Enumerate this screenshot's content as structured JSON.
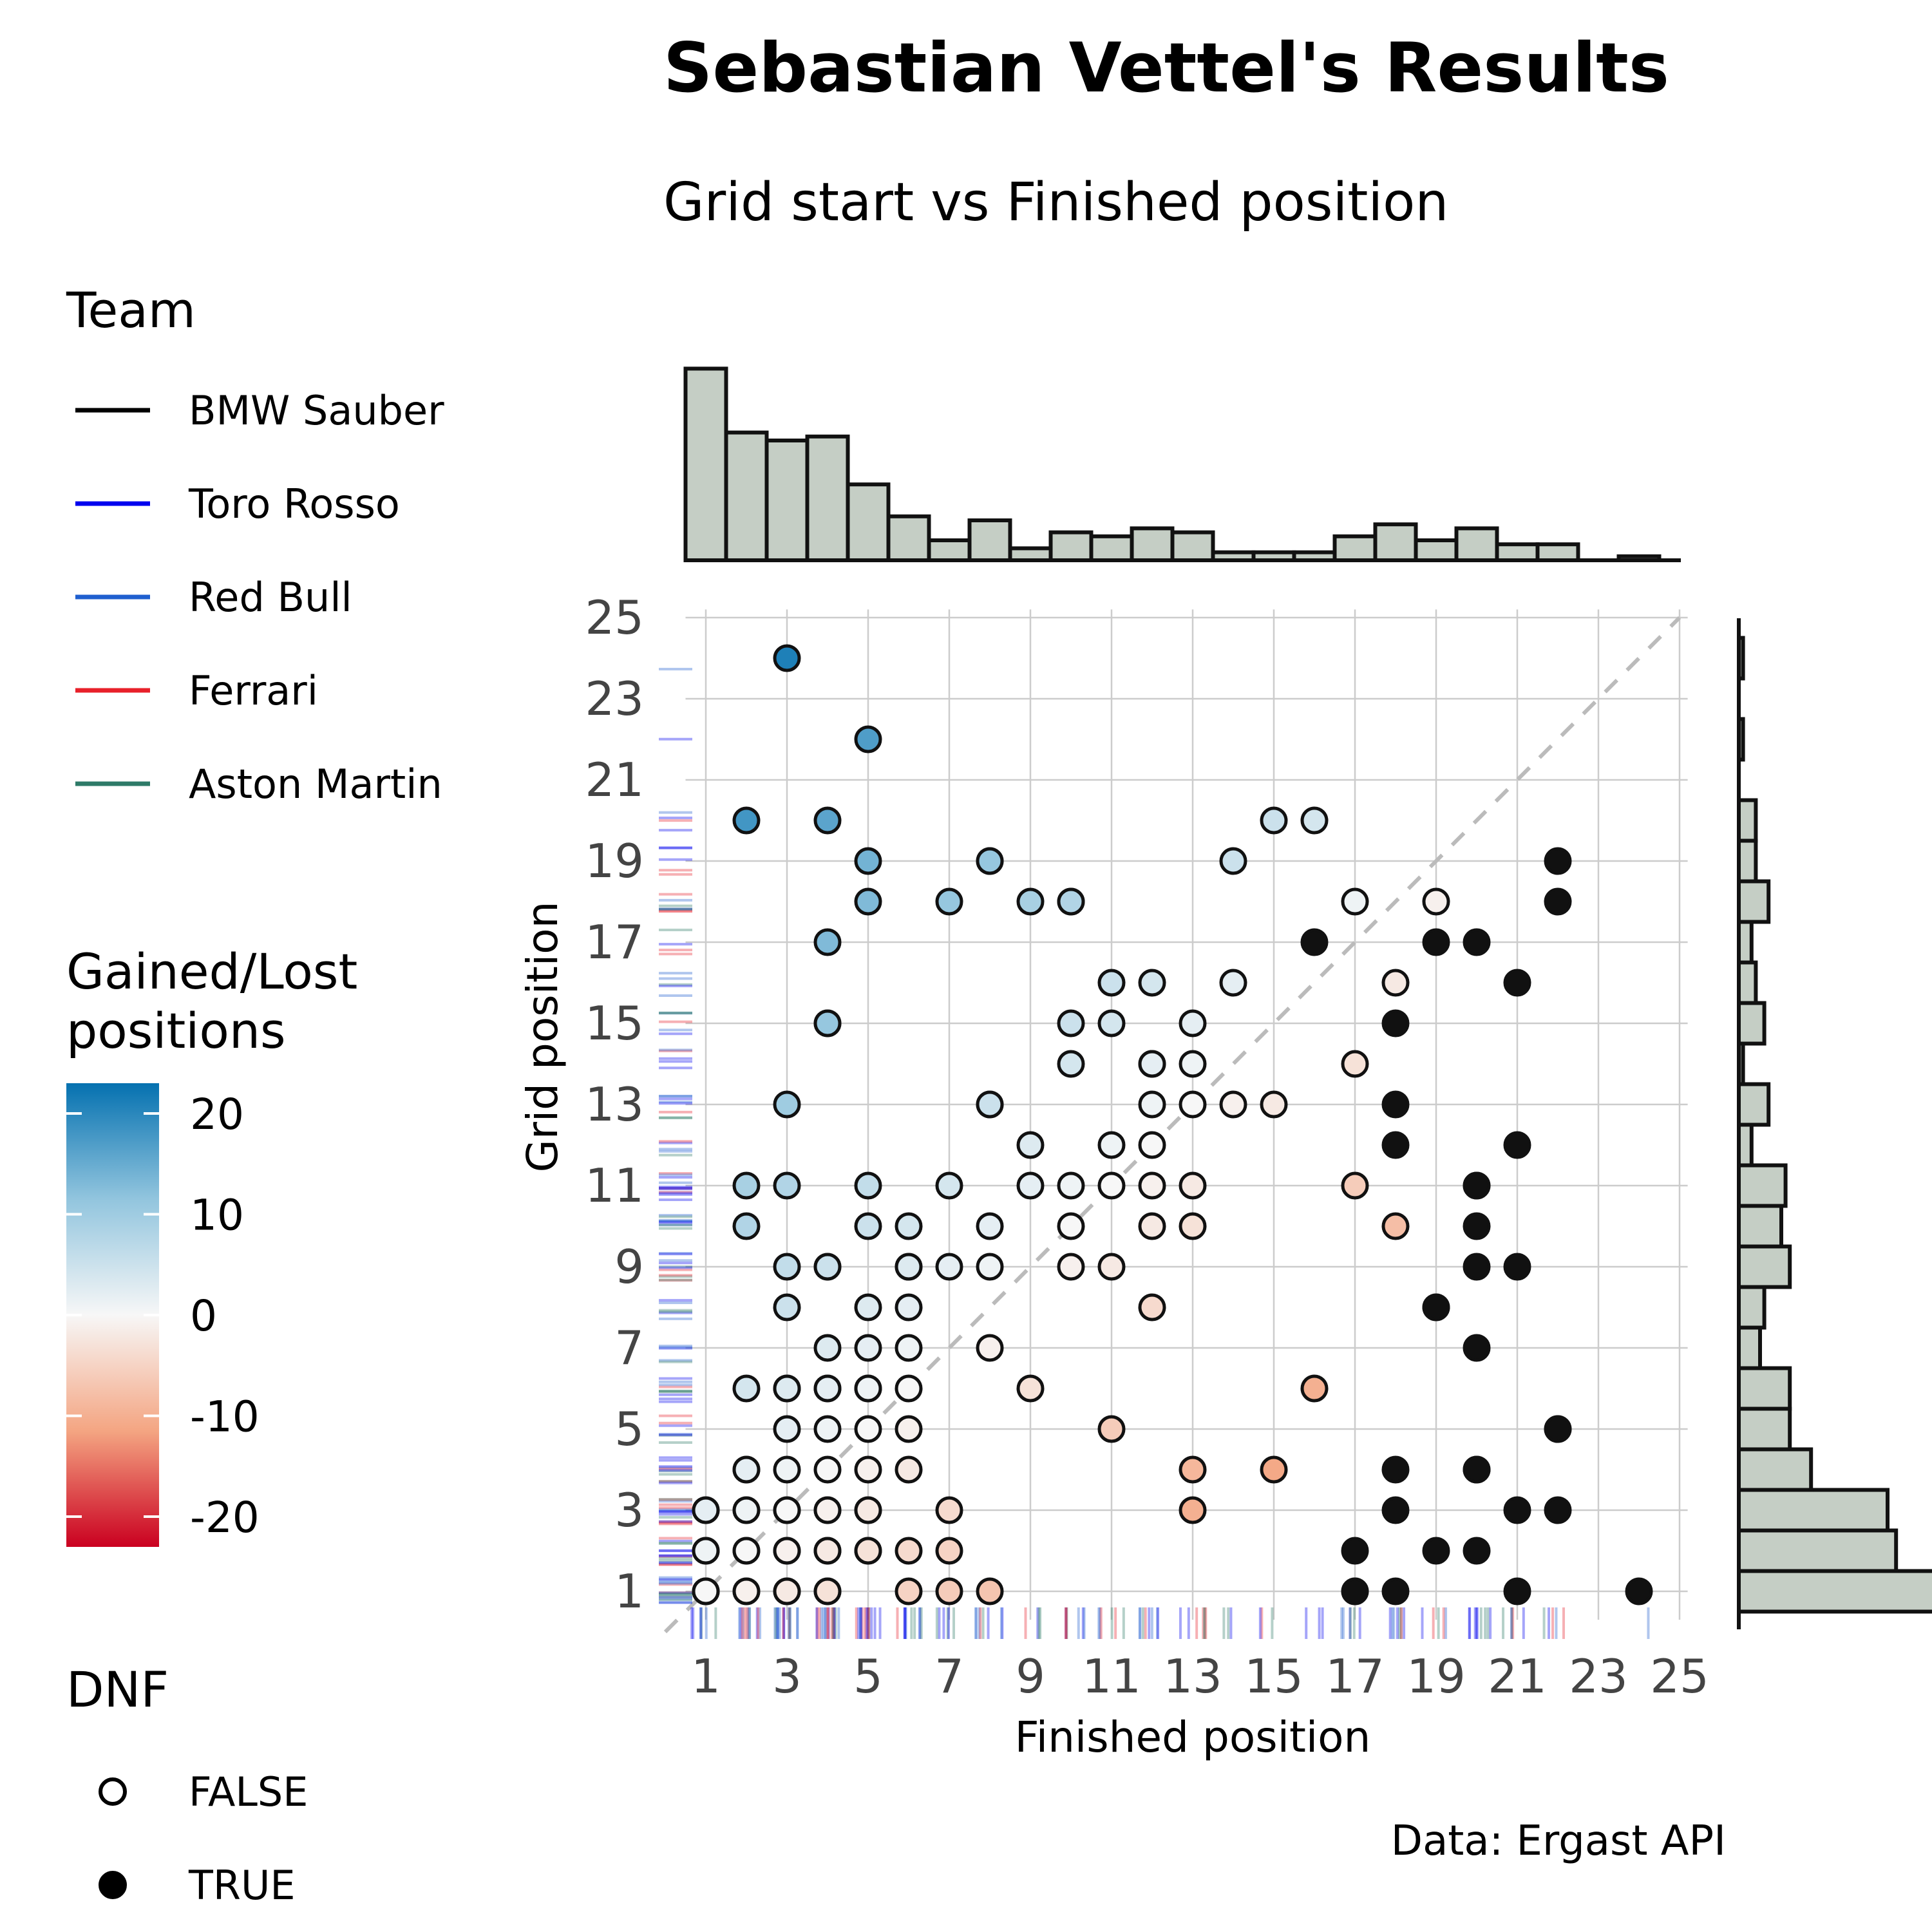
{
  "chart_data": {
    "type": "scatter",
    "title": "Sebastian Vettel's Results",
    "subtitle": "Grid start vs Finished position",
    "xlabel": "Finished position",
    "ylabel": "Grid position",
    "caption": "Data: Ergast API",
    "xlim": [
      0,
      25
    ],
    "ylim": [
      0,
      25
    ],
    "x_ticks": [
      1,
      3,
      5,
      7,
      9,
      11,
      13,
      15,
      17,
      19,
      21,
      23,
      25
    ],
    "y_ticks": [
      1,
      3,
      5,
      7,
      9,
      11,
      13,
      15,
      17,
      19,
      21,
      23,
      25
    ],
    "grid": true,
    "reference_line": "y = x (dashed)",
    "legend_team": {
      "title": "Team",
      "entries": [
        {
          "label": "BMW Sauber",
          "color": "#000000"
        },
        {
          "label": "Toro Rosso",
          "color": "#0000ee"
        },
        {
          "label": "Red Bull",
          "color": "#1f5fcf"
        },
        {
          "label": "Ferrari",
          "color": "#e8202a"
        },
        {
          "label": "Aston Martin",
          "color": "#2e7b68"
        }
      ]
    },
    "legend_gain": {
      "title_line1": "Gained/Lost",
      "title_line2": "positions",
      "ticks": [
        {
          "label": "20",
          "value": 20
        },
        {
          "label": "10",
          "value": 10
        },
        {
          "label": "0",
          "value": 0
        },
        {
          "label": "-10",
          "value": -10
        },
        {
          "label": "-20",
          "value": -20
        }
      ],
      "range": [
        -23,
        23
      ],
      "colors": [
        "#ca0020",
        "#f4a582",
        "#f7f7f7",
        "#92c5de",
        "#0571b0"
      ]
    },
    "legend_dnf": {
      "title": "DNF",
      "entries": [
        {
          "label": "FALSE",
          "filled": false
        },
        {
          "label": "TRUE",
          "filled": true
        }
      ]
    },
    "points": [
      {
        "x": 3,
        "y": 24,
        "dnf": false
      },
      {
        "x": 5,
        "y": 22,
        "dnf": false
      },
      {
        "x": 2,
        "y": 20,
        "dnf": false
      },
      {
        "x": 4,
        "y": 20,
        "dnf": false
      },
      {
        "x": 15,
        "y": 20,
        "dnf": false
      },
      {
        "x": 16,
        "y": 20,
        "dnf": false
      },
      {
        "x": 5,
        "y": 19,
        "dnf": false
      },
      {
        "x": 8,
        "y": 19,
        "dnf": false
      },
      {
        "x": 8,
        "y": 19,
        "dnf": false
      },
      {
        "x": 14,
        "y": 19,
        "dnf": false
      },
      {
        "x": 5,
        "y": 18,
        "dnf": false
      },
      {
        "x": 7,
        "y": 18,
        "dnf": false
      },
      {
        "x": 9,
        "y": 18,
        "dnf": false
      },
      {
        "x": 10,
        "y": 18,
        "dnf": false
      },
      {
        "x": 10,
        "y": 18,
        "dnf": false
      },
      {
        "x": 17,
        "y": 18,
        "dnf": false
      },
      {
        "x": 19,
        "y": 18,
        "dnf": false
      },
      {
        "x": 4,
        "y": 17,
        "dnf": false
      },
      {
        "x": 11,
        "y": 16,
        "dnf": false
      },
      {
        "x": 12,
        "y": 16,
        "dnf": false
      },
      {
        "x": 14,
        "y": 16,
        "dnf": false
      },
      {
        "x": 18,
        "y": 16,
        "dnf": false
      },
      {
        "x": 4,
        "y": 15,
        "dnf": false
      },
      {
        "x": 4,
        "y": 15,
        "dnf": false
      },
      {
        "x": 10,
        "y": 15,
        "dnf": false
      },
      {
        "x": 11,
        "y": 15,
        "dnf": false
      },
      {
        "x": 13,
        "y": 15,
        "dnf": false
      },
      {
        "x": 10,
        "y": 14,
        "dnf": false
      },
      {
        "x": 12,
        "y": 14,
        "dnf": false
      },
      {
        "x": 12,
        "y": 14,
        "dnf": false
      },
      {
        "x": 13,
        "y": 14,
        "dnf": false
      },
      {
        "x": 17,
        "y": 14,
        "dnf": false
      },
      {
        "x": 3,
        "y": 13,
        "dnf": false
      },
      {
        "x": 8,
        "y": 13,
        "dnf": false
      },
      {
        "x": 8,
        "y": 13,
        "dnf": false
      },
      {
        "x": 12,
        "y": 13,
        "dnf": false
      },
      {
        "x": 13,
        "y": 13,
        "dnf": false
      },
      {
        "x": 14,
        "y": 13,
        "dnf": false
      },
      {
        "x": 15,
        "y": 13,
        "dnf": false
      },
      {
        "x": 9,
        "y": 12,
        "dnf": false
      },
      {
        "x": 11,
        "y": 12,
        "dnf": false
      },
      {
        "x": 12,
        "y": 12,
        "dnf": false
      },
      {
        "x": 2,
        "y": 11,
        "dnf": false
      },
      {
        "x": 3,
        "y": 11,
        "dnf": false
      },
      {
        "x": 5,
        "y": 11,
        "dnf": false
      },
      {
        "x": 7,
        "y": 11,
        "dnf": false
      },
      {
        "x": 9,
        "y": 11,
        "dnf": false
      },
      {
        "x": 10,
        "y": 11,
        "dnf": false
      },
      {
        "x": 11,
        "y": 11,
        "dnf": false
      },
      {
        "x": 12,
        "y": 11,
        "dnf": false
      },
      {
        "x": 13,
        "y": 11,
        "dnf": false
      },
      {
        "x": 17,
        "y": 11,
        "dnf": false
      },
      {
        "x": 2,
        "y": 10,
        "dnf": false
      },
      {
        "x": 5,
        "y": 10,
        "dnf": false
      },
      {
        "x": 6,
        "y": 10,
        "dnf": false
      },
      {
        "x": 8,
        "y": 10,
        "dnf": false
      },
      {
        "x": 10,
        "y": 10,
        "dnf": false
      },
      {
        "x": 12,
        "y": 10,
        "dnf": false
      },
      {
        "x": 13,
        "y": 10,
        "dnf": false
      },
      {
        "x": 18,
        "y": 10,
        "dnf": false
      },
      {
        "x": 3,
        "y": 9,
        "dnf": false
      },
      {
        "x": 4,
        "y": 9,
        "dnf": false
      },
      {
        "x": 4,
        "y": 9,
        "dnf": false
      },
      {
        "x": 6,
        "y": 9,
        "dnf": false
      },
      {
        "x": 6,
        "y": 9,
        "dnf": false
      },
      {
        "x": 7,
        "y": 9,
        "dnf": false
      },
      {
        "x": 8,
        "y": 9,
        "dnf": false
      },
      {
        "x": 10,
        "y": 9,
        "dnf": false
      },
      {
        "x": 11,
        "y": 9,
        "dnf": false
      },
      {
        "x": 3,
        "y": 8,
        "dnf": false
      },
      {
        "x": 5,
        "y": 8,
        "dnf": false
      },
      {
        "x": 6,
        "y": 8,
        "dnf": false
      },
      {
        "x": 12,
        "y": 8,
        "dnf": false
      },
      {
        "x": 4,
        "y": 7,
        "dnf": false
      },
      {
        "x": 5,
        "y": 7,
        "dnf": false
      },
      {
        "x": 6,
        "y": 7,
        "dnf": false
      },
      {
        "x": 8,
        "y": 7,
        "dnf": false
      },
      {
        "x": 2,
        "y": 6,
        "dnf": false
      },
      {
        "x": 3,
        "y": 6,
        "dnf": false
      },
      {
        "x": 3,
        "y": 6,
        "dnf": false
      },
      {
        "x": 4,
        "y": 6,
        "dnf": false
      },
      {
        "x": 4,
        "y": 6,
        "dnf": false
      },
      {
        "x": 5,
        "y": 6,
        "dnf": false
      },
      {
        "x": 5,
        "y": 6,
        "dnf": false
      },
      {
        "x": 6,
        "y": 6,
        "dnf": false
      },
      {
        "x": 9,
        "y": 6,
        "dnf": false
      },
      {
        "x": 16,
        "y": 6,
        "dnf": false
      },
      {
        "x": 3,
        "y": 5,
        "dnf": false
      },
      {
        "x": 4,
        "y": 5,
        "dnf": false
      },
      {
        "x": 5,
        "y": 5,
        "dnf": false
      },
      {
        "x": 6,
        "y": 5,
        "dnf": false
      },
      {
        "x": 11,
        "y": 5,
        "dnf": false
      },
      {
        "x": 2,
        "y": 4,
        "dnf": false
      },
      {
        "x": 2,
        "y": 4,
        "dnf": false
      },
      {
        "x": 3,
        "y": 4,
        "dnf": false
      },
      {
        "x": 4,
        "y": 4,
        "dnf": false
      },
      {
        "x": 5,
        "y": 4,
        "dnf": false
      },
      {
        "x": 6,
        "y": 4,
        "dnf": false
      },
      {
        "x": 13,
        "y": 4,
        "dnf": false
      },
      {
        "x": 15,
        "y": 4,
        "dnf": false
      },
      {
        "x": 1,
        "y": 3,
        "dnf": false
      },
      {
        "x": 1,
        "y": 3,
        "dnf": false
      },
      {
        "x": 2,
        "y": 3,
        "dnf": false
      },
      {
        "x": 2,
        "y": 3,
        "dnf": false
      },
      {
        "x": 3,
        "y": 3,
        "dnf": false
      },
      {
        "x": 3,
        "y": 3,
        "dnf": false
      },
      {
        "x": 4,
        "y": 3,
        "dnf": false
      },
      {
        "x": 4,
        "y": 3,
        "dnf": false
      },
      {
        "x": 5,
        "y": 3,
        "dnf": false
      },
      {
        "x": 5,
        "y": 3,
        "dnf": false
      },
      {
        "x": 7,
        "y": 3,
        "dnf": false
      },
      {
        "x": 13,
        "y": 3,
        "dnf": false
      },
      {
        "x": 1,
        "y": 2,
        "dnf": false
      },
      {
        "x": 1,
        "y": 2,
        "dnf": false
      },
      {
        "x": 2,
        "y": 2,
        "dnf": false
      },
      {
        "x": 2,
        "y": 2,
        "dnf": false
      },
      {
        "x": 3,
        "y": 2,
        "dnf": false
      },
      {
        "x": 3,
        "y": 2,
        "dnf": false
      },
      {
        "x": 4,
        "y": 2,
        "dnf": false
      },
      {
        "x": 4,
        "y": 2,
        "dnf": false
      },
      {
        "x": 5,
        "y": 2,
        "dnf": false
      },
      {
        "x": 5,
        "y": 2,
        "dnf": false
      },
      {
        "x": 6,
        "y": 2,
        "dnf": false
      },
      {
        "x": 7,
        "y": 2,
        "dnf": false
      },
      {
        "x": 1,
        "y": 1,
        "dnf": false
      },
      {
        "x": 1,
        "y": 1,
        "dnf": false
      },
      {
        "x": 1,
        "y": 1,
        "dnf": false
      },
      {
        "x": 2,
        "y": 1,
        "dnf": false
      },
      {
        "x": 2,
        "y": 1,
        "dnf": false
      },
      {
        "x": 3,
        "y": 1,
        "dnf": false
      },
      {
        "x": 3,
        "y": 1,
        "dnf": false
      },
      {
        "x": 4,
        "y": 1,
        "dnf": false
      },
      {
        "x": 4,
        "y": 1,
        "dnf": false
      },
      {
        "x": 6,
        "y": 1,
        "dnf": false
      },
      {
        "x": 7,
        "y": 1,
        "dnf": false
      },
      {
        "x": 8,
        "y": 1,
        "dnf": false
      },
      {
        "x": 22,
        "y": 19,
        "dnf": true
      },
      {
        "x": 22,
        "y": 18,
        "dnf": true
      },
      {
        "x": 16,
        "y": 17,
        "dnf": true
      },
      {
        "x": 19,
        "y": 17,
        "dnf": true
      },
      {
        "x": 20,
        "y": 17,
        "dnf": true
      },
      {
        "x": 21,
        "y": 16,
        "dnf": true
      },
      {
        "x": 18,
        "y": 15,
        "dnf": true
      },
      {
        "x": 18,
        "y": 13,
        "dnf": true
      },
      {
        "x": 18,
        "y": 12,
        "dnf": true
      },
      {
        "x": 21,
        "y": 12,
        "dnf": true
      },
      {
        "x": 20,
        "y": 11,
        "dnf": true
      },
      {
        "x": 20,
        "y": 11,
        "dnf": true
      },
      {
        "x": 20,
        "y": 10,
        "dnf": true
      },
      {
        "x": 20,
        "y": 9,
        "dnf": true
      },
      {
        "x": 21,
        "y": 9,
        "dnf": true
      },
      {
        "x": 19,
        "y": 8,
        "dnf": true
      },
      {
        "x": 19,
        "y": 8,
        "dnf": true
      },
      {
        "x": 20,
        "y": 7,
        "dnf": true
      },
      {
        "x": 22,
        "y": 5,
        "dnf": true
      },
      {
        "x": 22,
        "y": 5,
        "dnf": true
      },
      {
        "x": 18,
        "y": 4,
        "dnf": true
      },
      {
        "x": 20,
        "y": 4,
        "dnf": true
      },
      {
        "x": 20,
        "y": 4,
        "dnf": true
      },
      {
        "x": 18,
        "y": 3,
        "dnf": true
      },
      {
        "x": 21,
        "y": 3,
        "dnf": true
      },
      {
        "x": 22,
        "y": 3,
        "dnf": true
      },
      {
        "x": 17,
        "y": 2,
        "dnf": true
      },
      {
        "x": 19,
        "y": 2,
        "dnf": true
      },
      {
        "x": 20,
        "y": 2,
        "dnf": true
      },
      {
        "x": 17,
        "y": 1,
        "dnf": true
      },
      {
        "x": 17,
        "y": 1,
        "dnf": true
      },
      {
        "x": 18,
        "y": 1,
        "dnf": true
      },
      {
        "x": 21,
        "y": 1,
        "dnf": true
      },
      {
        "x": 24,
        "y": 1,
        "dnf": true
      }
    ],
    "hist_finished": {
      "bin_centers": [
        1,
        2,
        3,
        4,
        5,
        6,
        7,
        8,
        9,
        10,
        11,
        12,
        13,
        14,
        15,
        16,
        17,
        18,
        19,
        20,
        21,
        22,
        23,
        24
      ],
      "counts": [
        48,
        32,
        30,
        31,
        19,
        11,
        5,
        10,
        3,
        7,
        6,
        8,
        7,
        2,
        2,
        2,
        6,
        9,
        5,
        8,
        4,
        4,
        0,
        1
      ]
    },
    "hist_grid": {
      "bin_centers": [
        1,
        2,
        3,
        4,
        5,
        6,
        7,
        8,
        9,
        10,
        11,
        12,
        13,
        14,
        15,
        16,
        17,
        18,
        19,
        20,
        21,
        22,
        23,
        24
      ],
      "counts": [
        48,
        37,
        35,
        17,
        12,
        12,
        5,
        6,
        12,
        10,
        11,
        3,
        7,
        1,
        6,
        4,
        3,
        7,
        4,
        4,
        0,
        1,
        0,
        1
      ]
    }
  }
}
